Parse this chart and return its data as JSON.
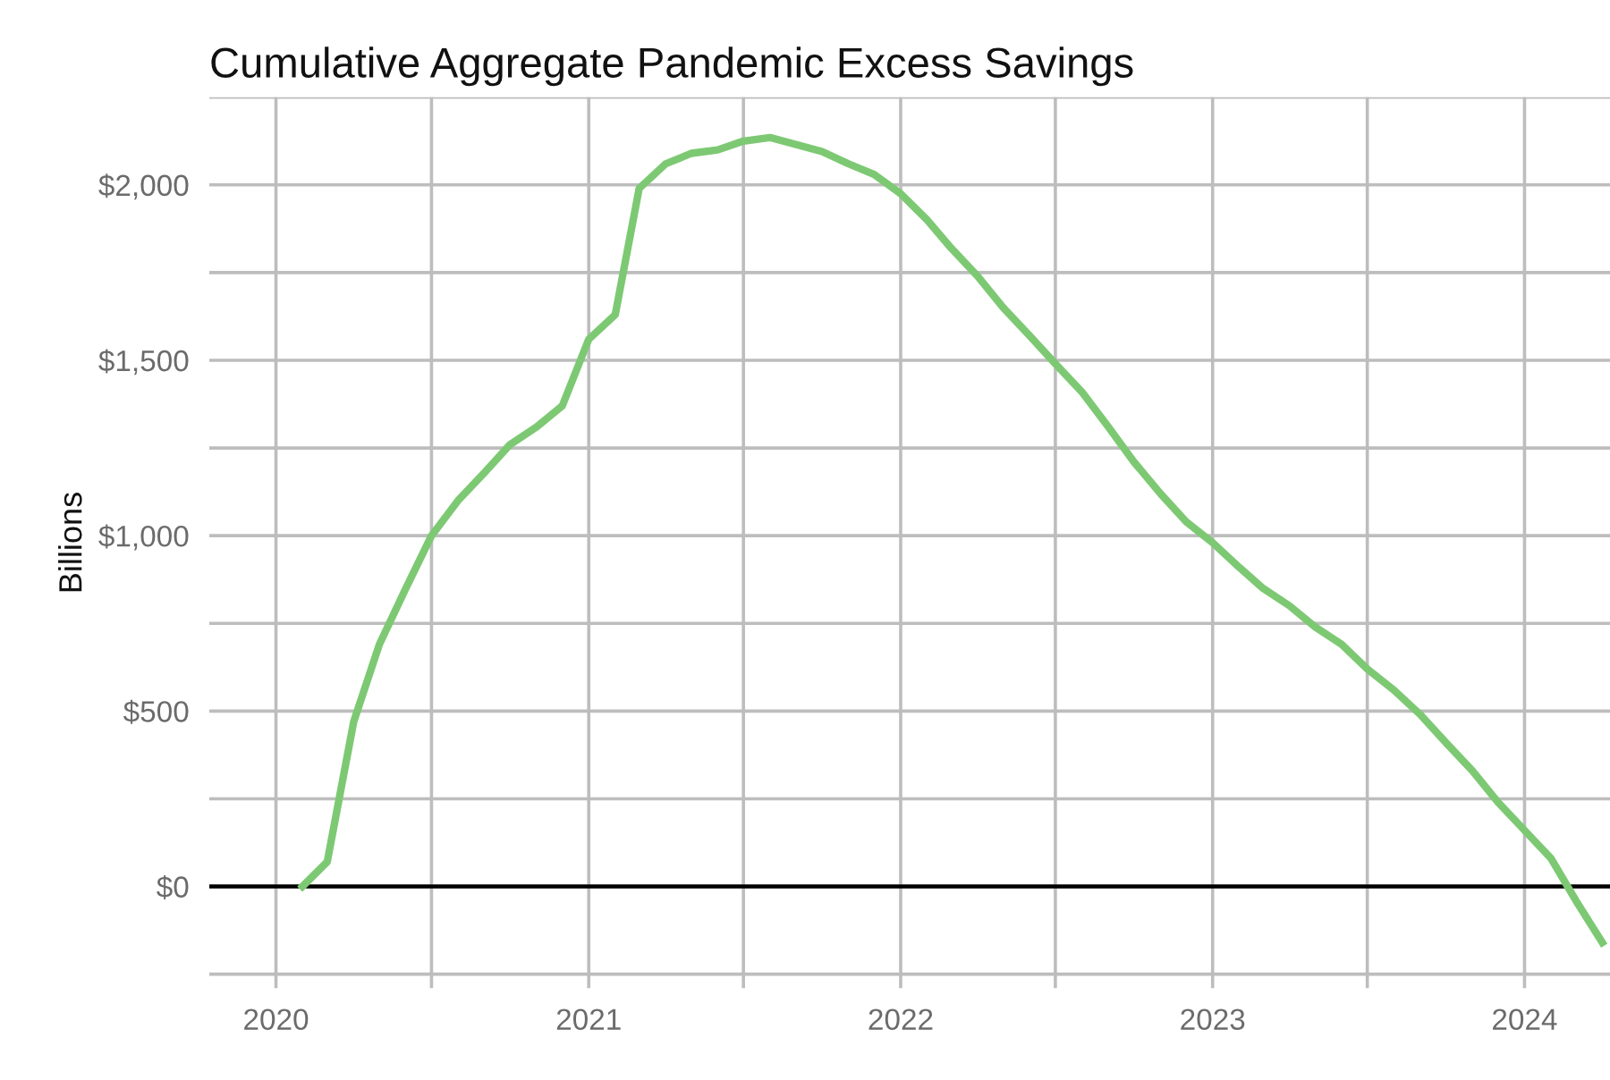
{
  "chart_data": {
    "type": "line",
    "title": "Cumulative Aggregate Pandemic Excess Savings",
    "ylabel": "Billions",
    "x": [
      "2020-02",
      "2020-03",
      "2020-04",
      "2020-05",
      "2020-06",
      "2020-07",
      "2020-08",
      "2020-09",
      "2020-10",
      "2020-11",
      "2020-12",
      "2021-01",
      "2021-02",
      "2021-03",
      "2021-04",
      "2021-05",
      "2021-06",
      "2021-07",
      "2021-08",
      "2021-09",
      "2021-10",
      "2021-11",
      "2021-12",
      "2022-01",
      "2022-02",
      "2022-03",
      "2022-04",
      "2022-05",
      "2022-06",
      "2022-07",
      "2022-08",
      "2022-09",
      "2022-10",
      "2022-11",
      "2022-12",
      "2023-01",
      "2023-02",
      "2023-03",
      "2023-04",
      "2023-05",
      "2023-06",
      "2023-07",
      "2023-08",
      "2023-09",
      "2023-10",
      "2023-11",
      "2023-12",
      "2024-01",
      "2024-02",
      "2024-03",
      "2024-04"
    ],
    "series": [
      {
        "color": "#7dc973",
        "values": [
          0,
          70,
          470,
          690,
          850,
          1000,
          1100,
          1180,
          1260,
          1310,
          1370,
          1560,
          1630,
          1990,
          2060,
          2090,
          2100,
          2125,
          2135,
          2115,
          2095,
          2060,
          2030,
          1975,
          1900,
          1820,
          1740,
          1650,
          1570,
          1490,
          1410,
          1310,
          1210,
          1120,
          1040,
          980,
          910,
          850,
          800,
          740,
          690,
          620,
          560,
          490,
          410,
          330,
          240,
          160,
          80,
          -40,
          -160
        ]
      }
    ],
    "xlim": [
      "2019-10-15",
      "2024-04-10"
    ],
    "xticks": [
      {
        "value": "2020",
        "label": "2020"
      },
      {
        "value": "2020-07",
        "label": null
      },
      {
        "value": "2021",
        "label": "2021"
      },
      {
        "value": "2021-07",
        "label": null
      },
      {
        "value": "2022",
        "label": "2022"
      },
      {
        "value": "2022-07",
        "label": null
      },
      {
        "value": "2023",
        "label": "2023"
      },
      {
        "value": "2023-07",
        "label": null
      },
      {
        "value": "2024",
        "label": "2024"
      }
    ],
    "ylim": [
      -290,
      2250
    ],
    "yticks": [
      {
        "value": -250,
        "label": null
      },
      {
        "value": 0,
        "label": "$0"
      },
      {
        "value": 250,
        "label": null
      },
      {
        "value": 500,
        "label": "$500"
      },
      {
        "value": 750,
        "label": null
      },
      {
        "value": 1000,
        "label": "$1,000"
      },
      {
        "value": 1250,
        "label": null
      },
      {
        "value": 1500,
        "label": "$1,500"
      },
      {
        "value": 1750,
        "label": null
      },
      {
        "value": 2000,
        "label": "$2,000"
      },
      {
        "value": 2250,
        "label": null
      }
    ],
    "ref_lines": [
      {
        "axis": "y",
        "value": 0,
        "color": "#000000"
      }
    ],
    "grid": true,
    "marker": "none",
    "line_style": "solid"
  }
}
